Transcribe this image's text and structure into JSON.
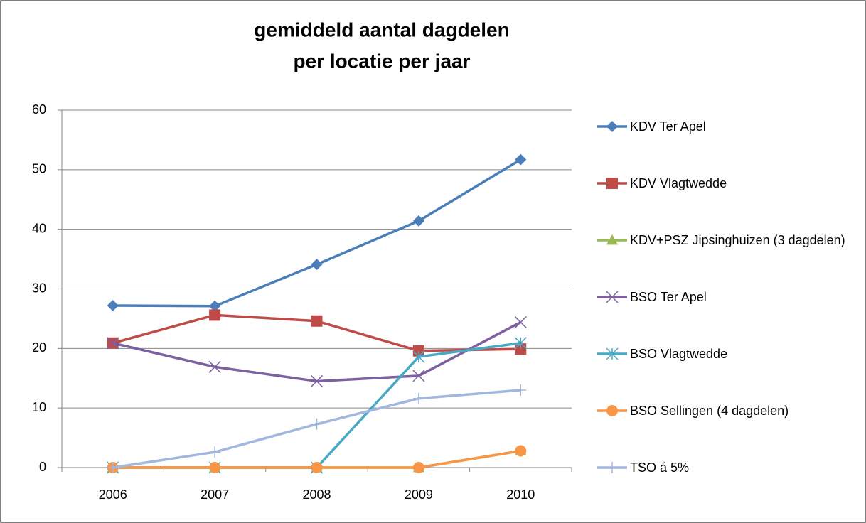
{
  "chart_data": {
    "type": "line",
    "title": [
      "gemiddeld aantal dagdelen",
      "per locatie per jaar"
    ],
    "categories": [
      "2006",
      "2007",
      "2008",
      "2009",
      "2010"
    ],
    "ylim": [
      0,
      60
    ],
    "yticks": [
      0,
      10,
      20,
      30,
      40,
      50,
      60
    ],
    "grid": true,
    "legend": "right",
    "series": [
      {
        "name": "KDV Ter Apel",
        "color": "#4a7ebb",
        "marker": "diamond",
        "values": [
          27.2,
          27.1,
          34.1,
          41.4,
          51.7
        ]
      },
      {
        "name": "KDV Vlagtwedde",
        "color": "#be4b48",
        "marker": "square",
        "values": [
          20.9,
          25.6,
          24.6,
          19.6,
          19.9
        ]
      },
      {
        "name": "KDV+PSZ Jipsinghuizen (3 dagdelen)",
        "color": "#98b954",
        "marker": "triangle",
        "values": [
          0,
          0,
          0,
          0,
          2.8
        ]
      },
      {
        "name": "BSO Ter Apel",
        "color": "#7d60a0",
        "marker": "x",
        "values": [
          20.9,
          16.9,
          14.5,
          15.4,
          24.4
        ]
      },
      {
        "name": "BSO Vlagtwedde",
        "color": "#46aac5",
        "marker": "star",
        "values": [
          0,
          0,
          0,
          18.6,
          20.9
        ]
      },
      {
        "name": "BSO Sellingen (4 dagdelen)",
        "color": "#f79646",
        "marker": "circle",
        "values": [
          0,
          0,
          0,
          0,
          2.8
        ]
      },
      {
        "name": "TSO á 5%",
        "color": "#a2b7de",
        "marker": "plus",
        "values": [
          0,
          2.6,
          7.3,
          11.6,
          13.0
        ]
      }
    ]
  }
}
